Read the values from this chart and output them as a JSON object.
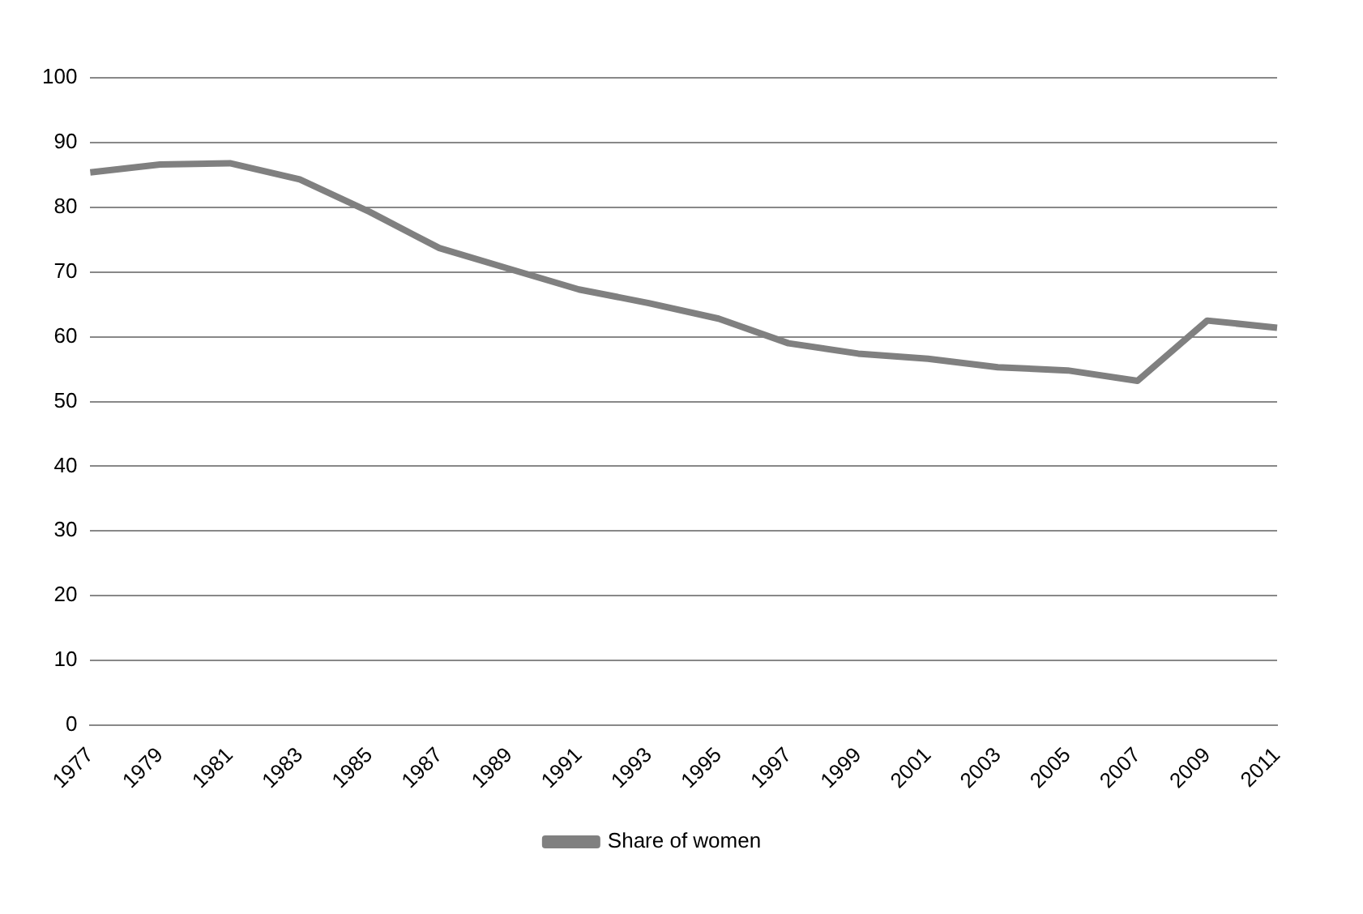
{
  "chart_data": {
    "type": "line",
    "categories": [
      "1977",
      "1979",
      "1981",
      "1983",
      "1985",
      "1987",
      "1989",
      "1991",
      "1993",
      "1995",
      "1997",
      "1999",
      "2001",
      "2003",
      "2005",
      "2007",
      "2009",
      "2011"
    ],
    "series": [
      {
        "name": "Share of women",
        "color": "#808080",
        "values": [
          85.4,
          86.6,
          86.8,
          84.3,
          79.3,
          73.7,
          70.5,
          67.3,
          65.2,
          62.8,
          59,
          57.4,
          56.6,
          55.3,
          54.8,
          53.2,
          62.5,
          61.4
        ]
      }
    ],
    "ylim": [
      0,
      100
    ],
    "yticks": [
      0,
      10,
      20,
      30,
      40,
      50,
      60,
      70,
      80,
      90,
      100
    ],
    "grid": "y",
    "legend": "bottom",
    "marker": "none",
    "line_style": "solid"
  }
}
